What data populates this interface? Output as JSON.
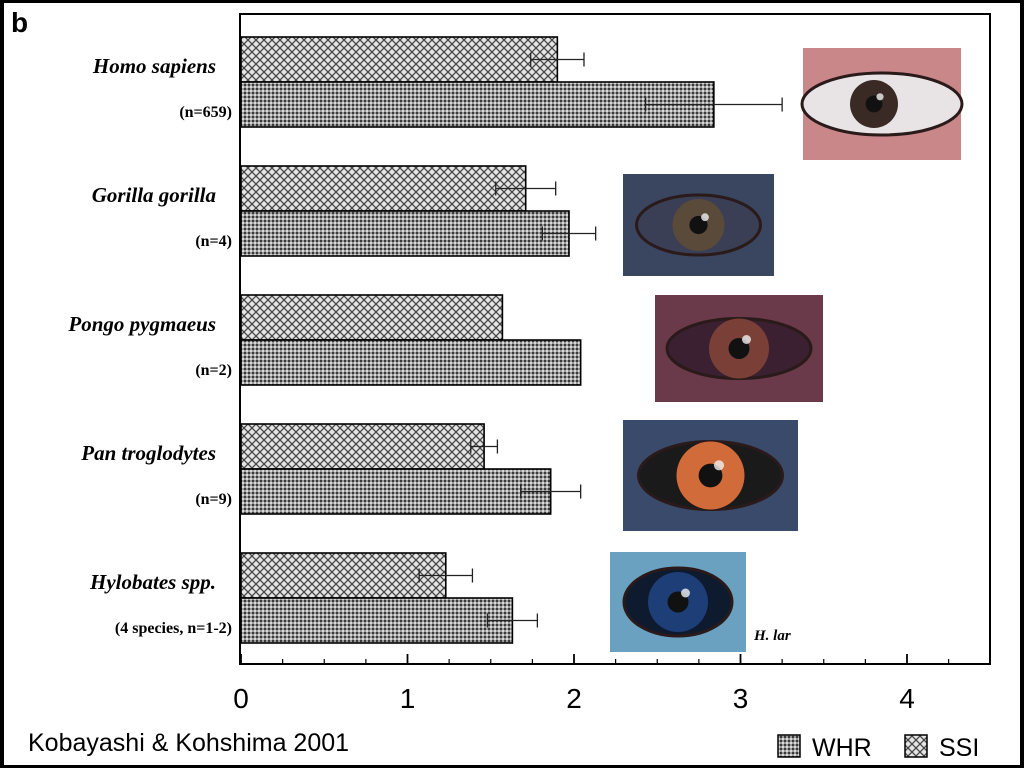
{
  "panel_label": "b",
  "credit": "Kobayashi & Kohshima 2001",
  "photo_caption": "H. lar",
  "colors": {
    "background": "#ffffff",
    "frame": "#000000",
    "bar_dark": "#8c8c8c",
    "bar_light": "#d6d6d6",
    "error_bar": "#222222"
  },
  "chart_data": {
    "type": "bar",
    "orientation": "horizontal",
    "categories": [
      {
        "name": "Homo sapiens",
        "sample": "(n=659)"
      },
      {
        "name": "Gorilla gorilla",
        "sample": "(n=4)"
      },
      {
        "name": "Pongo pygmaeus",
        "sample": "(n=2)"
      },
      {
        "name": "Pan troglodytes",
        "sample": "(n=9)"
      },
      {
        "name": "Hylobates spp.",
        "sample": "(4 species, n=1-2)"
      }
    ],
    "series": [
      {
        "name": "SSI",
        "pattern": "crosshatch",
        "values": [
          1.9,
          1.71,
          1.57,
          1.46,
          1.23
        ],
        "errors": [
          0.16,
          0.18,
          null,
          0.08,
          0.16
        ]
      },
      {
        "name": "WHR",
        "pattern": "dense-dots",
        "values": [
          2.84,
          1.97,
          2.04,
          1.86,
          1.63
        ],
        "errors": [
          0.41,
          0.16,
          null,
          0.18,
          0.15
        ]
      }
    ],
    "x_ticks": [
      0,
      1,
      2,
      3,
      4
    ],
    "xlim": [
      0,
      4.5
    ],
    "minor_ticks_every": 0.25,
    "legend": {
      "placement": "bottom-right",
      "entries": [
        "WHR",
        "SSI"
      ]
    }
  },
  "photos": [
    {
      "subject": "human-eye",
      "iris": "#3a2a26",
      "sclera": "#e8e4e6",
      "skin": "#c9878a"
    },
    {
      "subject": "gorilla-eye",
      "iris": "#5a4a3a",
      "sclera": "#3a3f55",
      "skin": "#3a4560"
    },
    {
      "subject": "orangutan-eye",
      "iris": "#7a4038",
      "sclera": "#3a2030",
      "skin": "#6a3a4a"
    },
    {
      "subject": "chimpanzee-eye",
      "iris": "#d26b3a",
      "sclera": "#1a1a1a",
      "skin": "#3a4a6a"
    },
    {
      "subject": "gibbon-eye",
      "iris": "#1e3e78",
      "sclera": "#0e1a2e",
      "skin": "#6aa0c0"
    }
  ]
}
